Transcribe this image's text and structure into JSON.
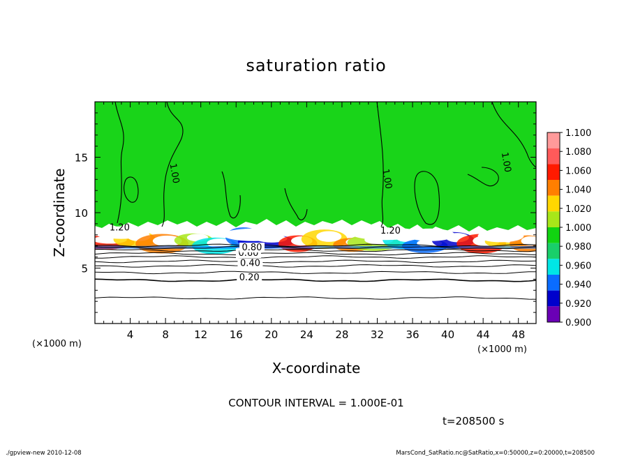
{
  "chart_data": {
    "type": "heatmap",
    "title": "saturation ratio",
    "xlabel": "X-coordinate",
    "ylabel": "Z-coordinate",
    "x_unit": "(×1000 m)",
    "y_unit": "(×1000 m)",
    "xlim": [
      0,
      50
    ],
    "ylim": [
      0,
      20
    ],
    "x_ticks": [
      4,
      8,
      12,
      16,
      20,
      24,
      28,
      32,
      36,
      40,
      44,
      48
    ],
    "y_ticks": [
      5,
      10,
      15
    ],
    "contour_interval_label": "CONTOUR INTERVAL = 1.000E-01",
    "time_label": "t=208500 s",
    "contour_labels": [
      {
        "text": "0.20",
        "x": 17.5,
        "z": 3.9
      },
      {
        "text": "0.40",
        "x": 17.6,
        "z": 5.2
      },
      {
        "text": "0.60",
        "x": 17.4,
        "z": 6.1
      },
      {
        "text": "0.80",
        "x": 17.8,
        "z": 6.6
      },
      {
        "text": "1.00",
        "x": 8.7,
        "z": 13.5
      },
      {
        "text": "1.00",
        "x": 32.8,
        "z": 13.0
      },
      {
        "text": "1.00",
        "x": 46.3,
        "z": 14.5
      },
      {
        "text": "1.20",
        "x": 2.8,
        "z": 8.4
      },
      {
        "text": "1.20",
        "x": 33.5,
        "z": 8.1
      }
    ],
    "colorbar": {
      "levels": [
        "1.100",
        "1.080",
        "1.060",
        "1.040",
        "1.020",
        "1.000",
        "0.980",
        "0.960",
        "0.940",
        "0.920",
        "0.900"
      ],
      "colors": [
        "#ff9a9a",
        "#ff5a5a",
        "#ff1a00",
        "#ff7f00",
        "#ffd700",
        "#a8e619",
        "#11d411",
        "#19cf6a",
        "#00e6e6",
        "#0a6cff",
        "#0000cc",
        "#6a00b5"
      ]
    },
    "series": [
      {
        "name": "",
        "description_levels": [
          0.2,
          0.4,
          0.6,
          0.8,
          1.0,
          1.2
        ]
      }
    ]
  },
  "footer": {
    "left": "./gpview-new  2010-12-08",
    "right": "MarsCond_SatRatio.nc@SatRatio,x=0:50000,z=0:20000,t=208500"
  }
}
